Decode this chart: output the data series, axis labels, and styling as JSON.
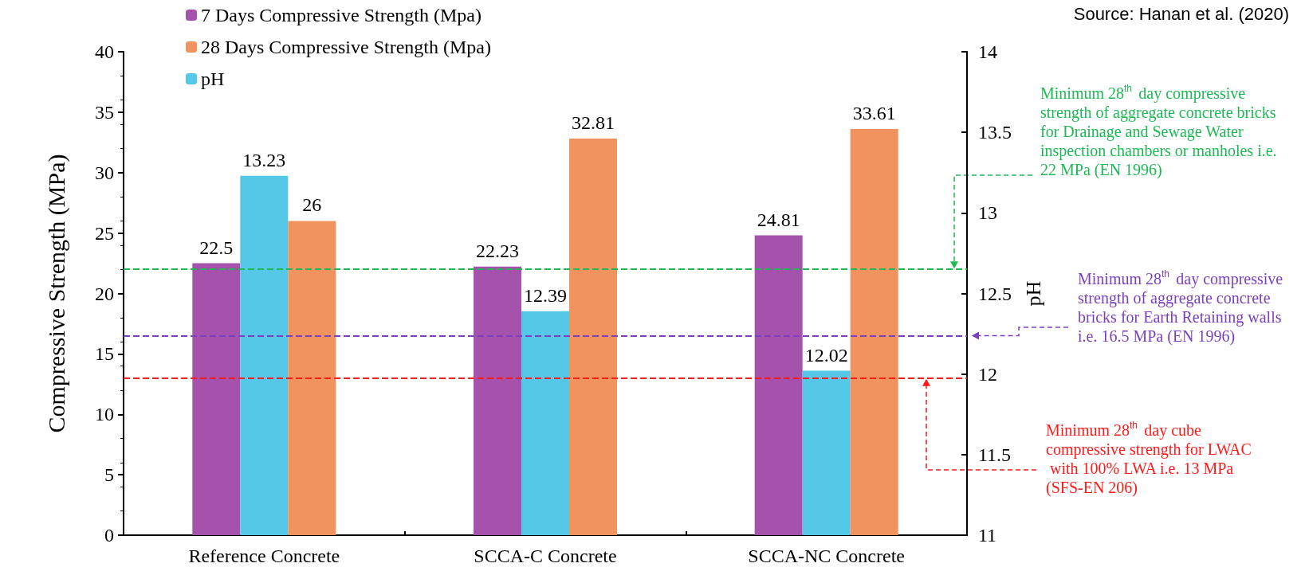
{
  "chart_data": {
    "type": "bar",
    "categories": [
      "Reference Concrete",
      "SCCA-C Concrete",
      "SCCA-NC Concrete"
    ],
    "series": [
      {
        "name": "7 Days Compressive Strength (Mpa)",
        "color": "#a552ad",
        "values": [
          22.5,
          22.23,
          24.81
        ]
      },
      {
        "name": "pH",
        "color": "#55c8e8",
        "values": [
          13.23,
          12.39,
          12.02
        ],
        "axis": "y2"
      },
      {
        "name": "28 Days Compressive Strength (Mpa)",
        "color": "#f0935e",
        "values": [
          26,
          32.81,
          33.61
        ]
      }
    ],
    "ylabel": "Compressive Strength (MPa)",
    "y2label": "pH",
    "ylim": [
      0,
      40
    ],
    "yticks": [
      0,
      5,
      10,
      15,
      20,
      25,
      30,
      35,
      40
    ],
    "y2lim": [
      11,
      14
    ],
    "y2ticks": [
      11,
      11.5,
      12,
      12.5,
      13,
      13.5,
      14
    ],
    "data_labels": true,
    "grid": false,
    "legend": "top left",
    "ref_lines": [
      {
        "axis": "y",
        "value": 22,
        "color": "#1db954",
        "line_style": "dashed",
        "label": "Minimum 28$^{th}$ day compressive strength of aggregate concrete bricks for Drainage and Sewage Water inspection chambers or manholes i.e. 22 MPa (EN 1996)"
      },
      {
        "axis": "y",
        "value": 16.5,
        "color": "#7b3fbf",
        "line_style": "dashed",
        "label": "Minimum 28$^{th}$ day compressive strength of aggregate concrete bricks for Earth Retaining walls i.e. 16.5 MPa (EN 1996)"
      },
      {
        "axis": "y",
        "value": 13,
        "color": "#ff1a1a",
        "line_style": "dashed",
        "label": "Minimum 28$^{th}$ day cube compressive strength for LWAC with 100% LWA i.e. 13 MPa (SFS-EN 206)"
      }
    ],
    "annotations": [
      "Source: Hanan et al. (2020)"
    ]
  }
}
